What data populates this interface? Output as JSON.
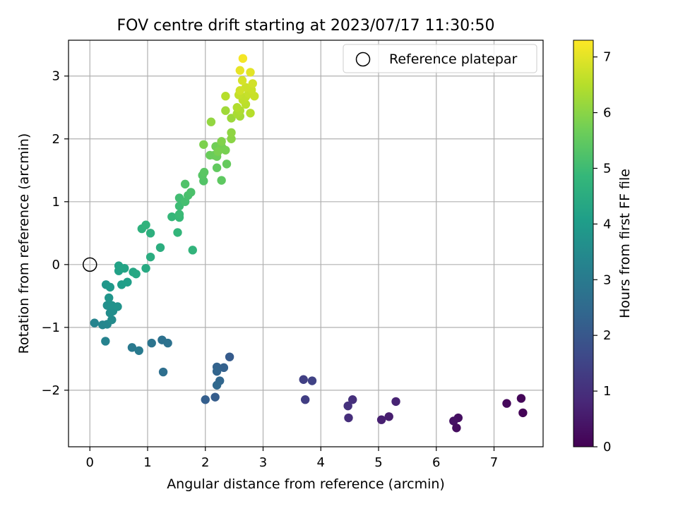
{
  "chart_data": {
    "type": "scatter",
    "title": "FOV centre drift starting at 2023/07/17 11:30:50",
    "xlabel": "Angular distance from reference (arcmin)",
    "ylabel": "Rotation from reference (arcmin)",
    "xlim": [
      -0.37,
      7.85
    ],
    "ylim": [
      -2.9,
      3.57
    ],
    "xticks": [
      0,
      1,
      2,
      3,
      4,
      5,
      6,
      7
    ],
    "yticks": [
      -2,
      -1,
      0,
      1,
      2,
      3
    ],
    "ytick_labels": [
      "−2",
      "−1",
      "0",
      "1",
      "2",
      "3"
    ],
    "grid": true,
    "legend": {
      "position": "top-right",
      "entries": [
        {
          "label": "Reference platepar",
          "marker": "open-circle"
        }
      ]
    },
    "reference_point": {
      "x": 0,
      "y": 0
    },
    "colorbar": {
      "label": "Hours from first FF file",
      "colormap": "viridis",
      "range": [
        0,
        7.3
      ],
      "ticks": [
        0,
        1,
        2,
        3,
        4,
        5,
        6,
        7
      ]
    },
    "points": [
      [
        7.47,
        -2.13,
        0.1
      ],
      [
        7.22,
        -2.21,
        0.15
      ],
      [
        7.5,
        -2.36,
        0.05
      ],
      [
        6.38,
        -2.44,
        0.3
      ],
      [
        6.3,
        -2.49,
        0.35
      ],
      [
        6.35,
        -2.6,
        0.25
      ],
      [
        5.3,
        -2.18,
        0.7
      ],
      [
        5.18,
        -2.42,
        0.6
      ],
      [
        5.05,
        -2.47,
        0.65
      ],
      [
        4.55,
        -2.15,
        1.0
      ],
      [
        4.47,
        -2.25,
        1.05
      ],
      [
        4.48,
        -2.44,
        0.95
      ],
      [
        3.7,
        -1.83,
        1.4
      ],
      [
        3.85,
        -1.85,
        1.45
      ],
      [
        3.73,
        -2.15,
        1.35
      ],
      [
        2.42,
        -1.47,
        2.1
      ],
      [
        2.2,
        -1.63,
        2.3
      ],
      [
        2.32,
        -1.64,
        2.25
      ],
      [
        2.2,
        -1.7,
        2.35
      ],
      [
        2.25,
        -1.85,
        2.4
      ],
      [
        2.2,
        -1.92,
        2.45
      ],
      [
        2.0,
        -2.15,
        2.2
      ],
      [
        2.17,
        -2.11,
        2.15
      ],
      [
        1.25,
        -1.2,
        2.7
      ],
      [
        1.35,
        -1.25,
        2.75
      ],
      [
        1.07,
        -1.25,
        2.8
      ],
      [
        1.27,
        -1.71,
        2.65
      ],
      [
        0.73,
        -1.32,
        2.95
      ],
      [
        0.85,
        -1.37,
        3.0
      ],
      [
        0.08,
        -0.93,
        3.3
      ],
      [
        0.22,
        -0.96,
        3.35
      ],
      [
        0.3,
        -0.95,
        3.4
      ],
      [
        0.27,
        -1.22,
        3.25
      ],
      [
        0.38,
        -0.88,
        3.5
      ],
      [
        0.35,
        -0.77,
        3.55
      ],
      [
        0.4,
        -0.74,
        3.6
      ],
      [
        0.3,
        -0.65,
        3.65
      ],
      [
        0.38,
        -0.65,
        3.7
      ],
      [
        0.48,
        -0.67,
        3.75
      ],
      [
        0.33,
        -0.53,
        3.8
      ],
      [
        0.28,
        -0.32,
        3.85
      ],
      [
        0.35,
        -0.36,
        3.9
      ],
      [
        0.55,
        -0.32,
        4.05
      ],
      [
        0.65,
        -0.28,
        4.1
      ],
      [
        0.5,
        -0.1,
        4.15
      ],
      [
        0.5,
        -0.02,
        4.2
      ],
      [
        0.6,
        -0.06,
        4.25
      ],
      [
        0.75,
        -0.12,
        4.3
      ],
      [
        0.8,
        -0.15,
        4.35
      ],
      [
        0.97,
        -0.06,
        4.4
      ],
      [
        1.05,
        0.12,
        4.5
      ],
      [
        1.22,
        0.27,
        4.55
      ],
      [
        1.05,
        0.5,
        4.6
      ],
      [
        0.9,
        0.57,
        4.65
      ],
      [
        0.97,
        0.63,
        4.7
      ],
      [
        1.78,
        0.23,
        4.75
      ],
      [
        1.52,
        0.51,
        4.8
      ],
      [
        1.42,
        0.76,
        4.85
      ],
      [
        1.55,
        0.75,
        4.9
      ],
      [
        1.55,
        0.8,
        4.95
      ],
      [
        1.55,
        0.93,
        5.0
      ],
      [
        1.55,
        1.06,
        5.05
      ],
      [
        1.65,
        1.0,
        5.1
      ],
      [
        1.7,
        1.1,
        5.15
      ],
      [
        1.75,
        1.15,
        5.2
      ],
      [
        1.65,
        1.28,
        5.25
      ],
      [
        1.97,
        1.33,
        5.3
      ],
      [
        1.95,
        1.42,
        5.35
      ],
      [
        1.98,
        1.47,
        5.4
      ],
      [
        2.28,
        1.34,
        5.45
      ],
      [
        2.2,
        1.54,
        5.5
      ],
      [
        2.37,
        1.6,
        5.55
      ],
      [
        2.08,
        1.74,
        5.6
      ],
      [
        2.15,
        1.74,
        5.62
      ],
      [
        2.2,
        1.72,
        5.65
      ],
      [
        2.18,
        1.88,
        5.7
      ],
      [
        2.27,
        1.9,
        5.72
      ],
      [
        2.3,
        1.85,
        5.75
      ],
      [
        2.35,
        1.82,
        5.78
      ],
      [
        2.22,
        1.8,
        5.8
      ],
      [
        1.97,
        1.91,
        5.85
      ],
      [
        2.28,
        1.96,
        5.9
      ],
      [
        2.45,
        2.0,
        6.0
      ],
      [
        2.45,
        2.1,
        6.05
      ],
      [
        2.1,
        2.27,
        6.1
      ],
      [
        2.45,
        2.33,
        6.2
      ],
      [
        2.35,
        2.45,
        6.25
      ],
      [
        2.6,
        2.36,
        6.3
      ],
      [
        2.55,
        2.4,
        6.35
      ],
      [
        2.6,
        2.45,
        6.4
      ],
      [
        2.55,
        2.5,
        6.45
      ],
      [
        2.78,
        2.41,
        6.5
      ],
      [
        2.7,
        2.55,
        6.55
      ],
      [
        2.65,
        2.62,
        6.6
      ],
      [
        2.7,
        2.67,
        6.62
      ],
      [
        2.58,
        2.7,
        6.65
      ],
      [
        2.75,
        2.72,
        6.68
      ],
      [
        2.85,
        2.68,
        6.7
      ],
      [
        2.8,
        2.78,
        6.72
      ],
      [
        2.7,
        2.82,
        6.75
      ],
      [
        2.6,
        2.77,
        6.78
      ],
      [
        2.82,
        2.88,
        6.8
      ],
      [
        2.35,
        2.68,
        6.5
      ],
      [
        2.64,
        2.93,
        6.85
      ],
      [
        2.78,
        3.06,
        7.0
      ],
      [
        2.6,
        3.09,
        7.05
      ],
      [
        2.65,
        3.28,
        7.2
      ]
    ]
  }
}
